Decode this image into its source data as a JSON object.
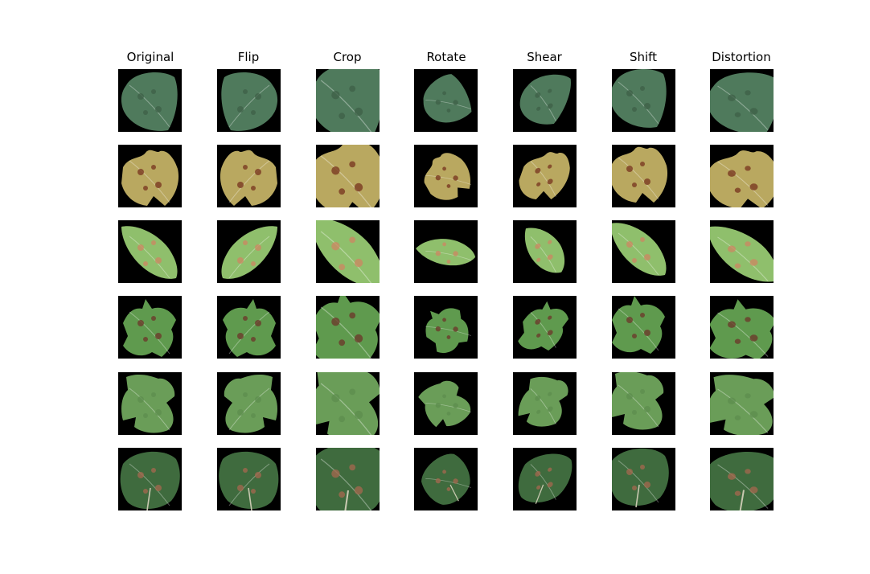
{
  "columns": [
    "Original",
    "Flip",
    "Crop",
    "Rotate",
    "Shear",
    "Shift",
    "Distortion"
  ],
  "rows": [
    {
      "leaf": "oval-green-leaf-with-dark-blotches",
      "color": "#4f7a5c",
      "spot": "#3e6249"
    },
    {
      "leaf": "grape-leaf-yellow-brown-rust",
      "color": "#b9a860",
      "spot": "#7a3a22"
    },
    {
      "leaf": "light-green-leaf-orange-spots",
      "color": "#8fbf6c",
      "spot": "#c98a63"
    },
    {
      "leaf": "serrated-leaf-brown-spots",
      "color": "#5f9a4e",
      "spot": "#6b3b2c"
    },
    {
      "leaf": "healthy-grape-leaf",
      "color": "#6a9d58",
      "spot": "#5e8f4f"
    },
    {
      "leaf": "round-dark-leaf-with-stem",
      "color": "#3f6b3e",
      "spot": "#a0684e"
    }
  ]
}
